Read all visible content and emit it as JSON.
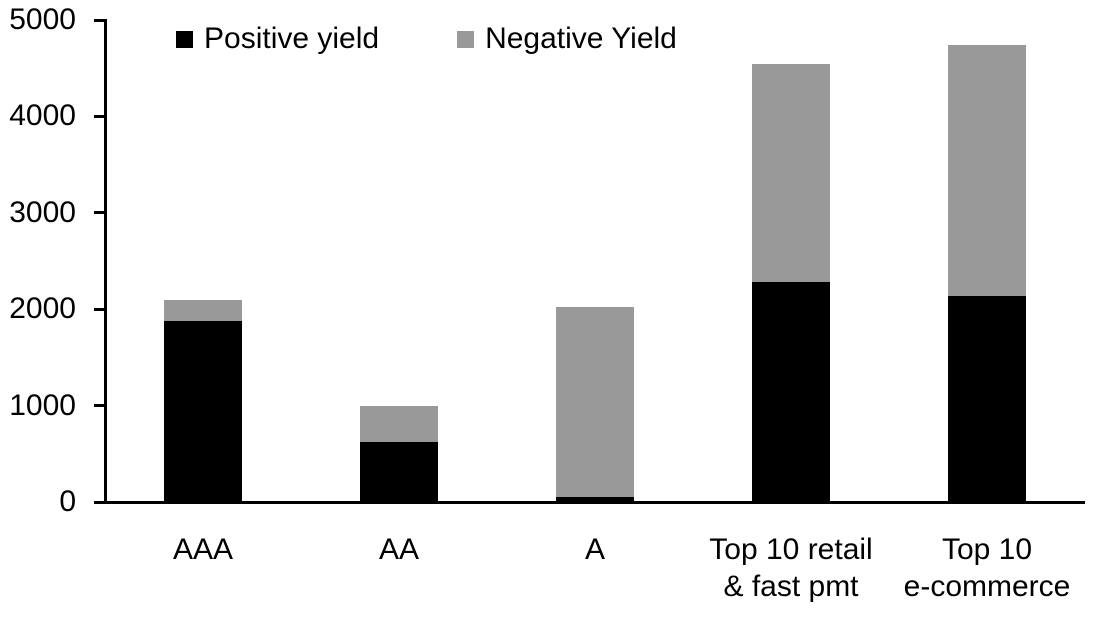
{
  "chart_data": {
    "type": "bar",
    "stacked": true,
    "title": "",
    "xlabel": "",
    "ylabel": "",
    "categories": [
      "AAA",
      "AA",
      "A",
      "Top 10 retail\n& fast pmt",
      "Top 10\ne-commerce"
    ],
    "series": [
      {
        "name": "Positive yield",
        "color": "#000000",
        "values": [
          1880,
          620,
          50,
          2280,
          2140
        ]
      },
      {
        "name": "Negative Yield",
        "color": "#999999",
        "values": [
          220,
          380,
          1975,
          2260,
          2600
        ]
      }
    ],
    "ylim": [
      0,
      5000
    ],
    "yticks": [
      0,
      1000,
      2000,
      3000,
      4000,
      5000
    ],
    "grid": false,
    "legend_position": "top"
  }
}
